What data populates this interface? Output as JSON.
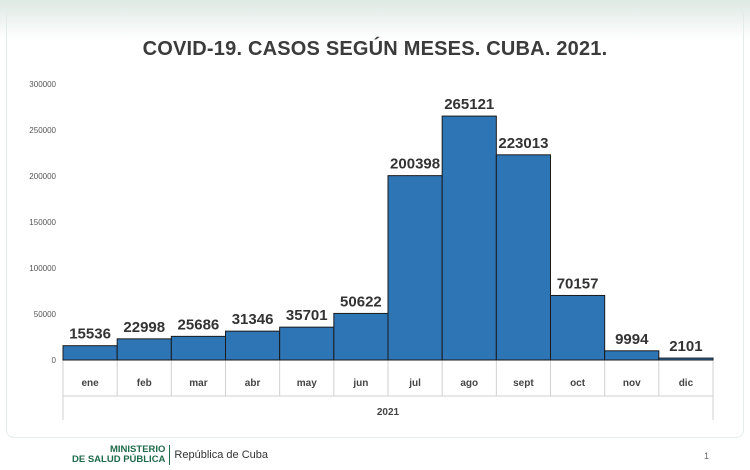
{
  "slide": {
    "footer_ministry_line1": "MINISTERIO",
    "footer_ministry_line2": "DE SALUD PÚBLICA",
    "footer_republic": "República de Cuba",
    "page_number": "1",
    "accent_color": "#1e6b49"
  },
  "chart_data": {
    "type": "bar",
    "title": "COVID-19. CASOS SEGÚN MESES. CUBA. 2021.",
    "xlabel": "2021",
    "ylabel": "",
    "categories": [
      "ene",
      "feb",
      "mar",
      "abr",
      "may",
      "jun",
      "jul",
      "ago",
      "sept",
      "oct",
      "nov",
      "dic"
    ],
    "series": [
      {
        "values": [
          15536,
          22998,
          25686,
          31346,
          35701,
          50622,
          200398,
          265121,
          223013,
          70157,
          9994,
          2101
        ],
        "color": "#2e75b6"
      }
    ],
    "ylim": [
      0,
      300000
    ],
    "yticks": [
      "0",
      "50000",
      "100000",
      "150000",
      "200000",
      "250000",
      "300000"
    ],
    "data_labels": [
      "15536",
      "22998",
      "25686",
      "31346",
      "35701",
      "50622",
      "200398",
      "265121",
      "223013",
      "70157",
      "9994",
      "2101"
    ],
    "grid": false,
    "legend": "none"
  }
}
